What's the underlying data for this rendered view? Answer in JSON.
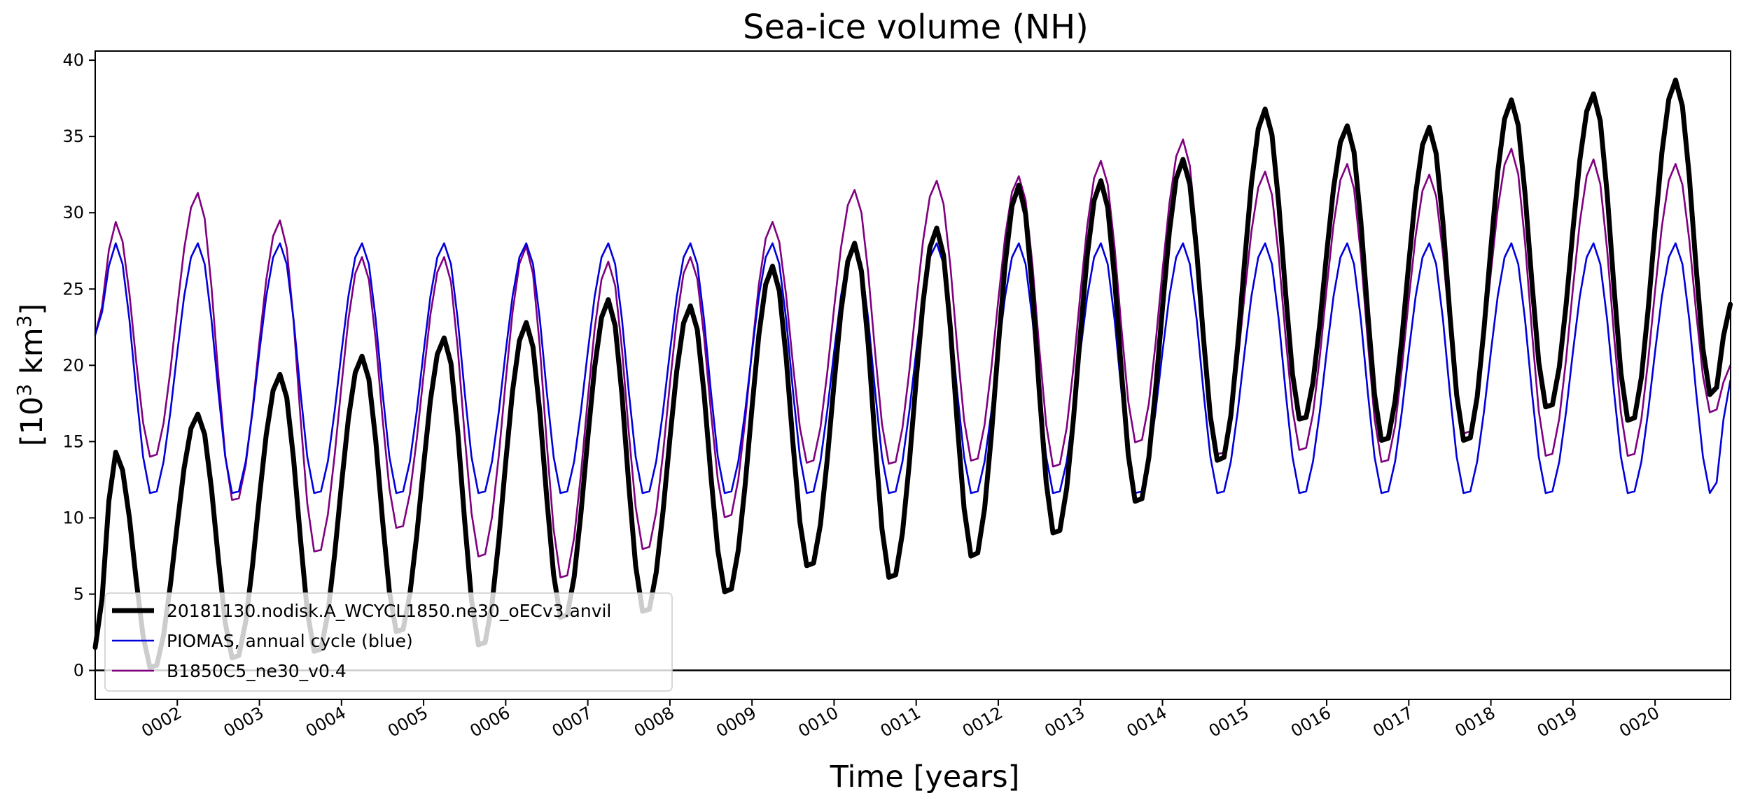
{
  "chart_data": {
    "type": "line",
    "title": "Sea-ice volume (NH)",
    "xlabel": "Time [years]",
    "ylabel": {
      "prefix": "[10",
      "exponent1": "3",
      "middle": " km",
      "exponent2": "3",
      "suffix": "]"
    },
    "xlim": [
      1.0,
      20.92
    ],
    "ylim": [
      -1.9,
      40.6
    ],
    "yticks": [
      0,
      5,
      10,
      15,
      20,
      25,
      30,
      35,
      40
    ],
    "xticks": [
      {
        "value": 2,
        "label": "0002"
      },
      {
        "value": 3,
        "label": "0003"
      },
      {
        "value": 4,
        "label": "0004"
      },
      {
        "value": 5,
        "label": "0005"
      },
      {
        "value": 6,
        "label": "0006"
      },
      {
        "value": 7,
        "label": "0007"
      },
      {
        "value": 8,
        "label": "0008"
      },
      {
        "value": 9,
        "label": "0009"
      },
      {
        "value": 10,
        "label": "0010"
      },
      {
        "value": 11,
        "label": "0011"
      },
      {
        "value": 12,
        "label": "0012"
      },
      {
        "value": 13,
        "label": "0013"
      },
      {
        "value": 14,
        "label": "0014"
      },
      {
        "value": 15,
        "label": "0015"
      },
      {
        "value": 16,
        "label": "0016"
      },
      {
        "value": 17,
        "label": "0017"
      },
      {
        "value": 18,
        "label": "0018"
      },
      {
        "value": 19,
        "label": "0019"
      },
      {
        "value": 20,
        "label": "0020"
      }
    ],
    "zero_line": 0,
    "grid": false,
    "legend_position": "lower-left",
    "series": [
      {
        "name": "20181130.nodisk.A_WCYCL1850.ne30_oECv3.anvil",
        "color": "#000000",
        "style": "thick",
        "yearly_max": [
          14.3,
          16.8,
          19.4,
          20.6,
          21.8,
          22.8,
          24.3,
          23.9,
          26.5,
          28.0,
          29.0,
          31.8,
          32.1,
          33.5,
          36.8,
          35.7,
          35.6,
          37.4,
          37.8,
          38.7
        ],
        "yearly_min": [
          0.0,
          0.6,
          1.0,
          2.3,
          1.4,
          3.2,
          3.6,
          4.9,
          6.6,
          5.8,
          7.2,
          8.7,
          10.8,
          13.5,
          16.2,
          14.8,
          14.8,
          17.0,
          16.1,
          17.8
        ],
        "start_value": 1.5,
        "end_value": 24.0
      },
      {
        "name": "PIOMAS, annual cycle (blue)",
        "color": "#0000dd",
        "style": "thin",
        "yearly_max": [
          28.0,
          28.0,
          28.0,
          28.0,
          28.0,
          28.0,
          28.0,
          28.0,
          28.0,
          28.0,
          28.0,
          28.0,
          28.0,
          28.0,
          28.0,
          28.0,
          28.0,
          28.0,
          28.0,
          28.0
        ],
        "yearly_min": [
          11.4,
          11.4,
          11.4,
          11.4,
          11.4,
          11.4,
          11.4,
          11.4,
          11.4,
          11.4,
          11.4,
          11.4,
          11.4,
          11.4,
          11.4,
          11.4,
          11.4,
          11.4,
          11.4,
          11.4
        ],
        "start_value": 22.0,
        "end_value": 19.0
      },
      {
        "name": "B1850C5_ne30_v0.4",
        "color": "#800080",
        "style": "thin",
        "yearly_max": [
          29.4,
          31.3,
          29.5,
          27.1,
          27.1,
          27.8,
          26.8,
          27.1,
          29.4,
          31.5,
          32.1,
          32.4,
          33.4,
          34.8,
          32.7,
          33.2,
          32.5,
          34.2,
          33.5,
          33.2
        ],
        "yearly_min": [
          13.8,
          10.9,
          7.5,
          9.1,
          7.2,
          5.8,
          7.7,
          9.8,
          13.4,
          13.3,
          13.5,
          13.1,
          14.7,
          13.9,
          14.2,
          13.4,
          15.3,
          13.8,
          13.8,
          16.7
        ],
        "start_value": 22.0,
        "end_value": 20.0
      }
    ]
  }
}
